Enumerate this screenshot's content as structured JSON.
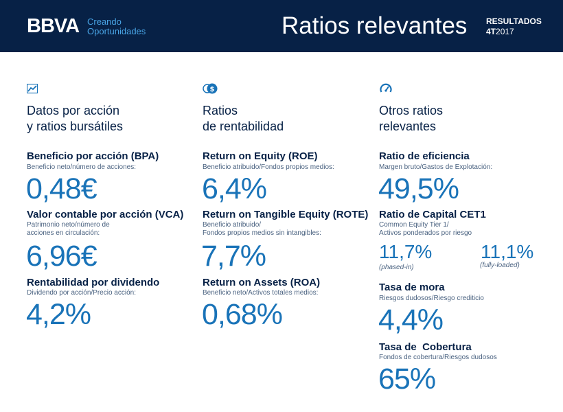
{
  "header": {
    "logo": "BBVA",
    "tagline_line1": "Creando",
    "tagline_line2": "Oportunidades",
    "title": "Ratios relevantes",
    "results_label": "RESULTADOS",
    "quarter": "4T",
    "year": "2017"
  },
  "colors": {
    "navy": "#072146",
    "accent_blue": "#1973b8",
    "light_blue": "#49a5e6"
  },
  "columns": [
    {
      "icon": "trend-chart-icon",
      "title_line1": "Datos por acción",
      "title_line2": "y ratios bursátiles",
      "metrics": [
        {
          "title": "Beneficio por acción (BPA)",
          "desc_line1": "Beneficio neto/número de acciones:",
          "desc_line2": "",
          "value": "0,48€"
        },
        {
          "title": "Valor contable por acción (VCA)",
          "desc_line1": "Patrimonio neto/número de",
          "desc_line2": "acciones en circulación:",
          "value": "6,96€"
        },
        {
          "title": "Rentabilidad por dividendo",
          "desc_line1": "Dividendo por acción/Precio acción:",
          "desc_line2": "",
          "value": "4,2%"
        }
      ]
    },
    {
      "icon": "dollar-coins-icon",
      "title_line1": "Ratios",
      "title_line2": "de rentabilidad",
      "metrics": [
        {
          "title": "Return on Equity (ROE)",
          "desc_line1": "Beneficio atribuido/Fondos propios medios:",
          "desc_line2": "",
          "value": "6,4%"
        },
        {
          "title": "Return on Tangible Equity (ROTE)",
          "desc_line1": "Beneficio atribuido/",
          "desc_line2": "Fondos propios medios sin intangibles:",
          "value": "7,7%"
        },
        {
          "title": "Return on Assets (ROA)",
          "desc_line1": "Beneficio neto/Activos totales medios:",
          "desc_line2": "",
          "value": "0,68%"
        }
      ]
    },
    {
      "icon": "gauge-icon",
      "title_line1": "Otros ratios",
      "title_line2": "relevantes",
      "metrics": [
        {
          "title": "Ratio de eficiencia",
          "desc_line1": "Margen bruto/Gastos de Explotación:",
          "desc_line2": "",
          "value": "49,5%"
        },
        {
          "title": "Ratio de Capital CET1",
          "desc_line1": "Common Equity Tier 1/",
          "desc_line2": "Activos ponderados por riesgo",
          "value_a": "11,7%",
          "note_a": "(phased-in)",
          "value_b": "11,1%",
          "note_b": "(fully-loaded)"
        },
        {
          "title": "Tasa de mora",
          "desc_line1": "Riesgos dudosos/Riesgo crediticio",
          "desc_line2": "",
          "value": "4,4%"
        },
        {
          "title": "Tasa de  Cobertura",
          "desc_line1": "Fondos de cobertura/Riesgos dudosos",
          "desc_line2": "",
          "value": "65%"
        }
      ]
    }
  ]
}
